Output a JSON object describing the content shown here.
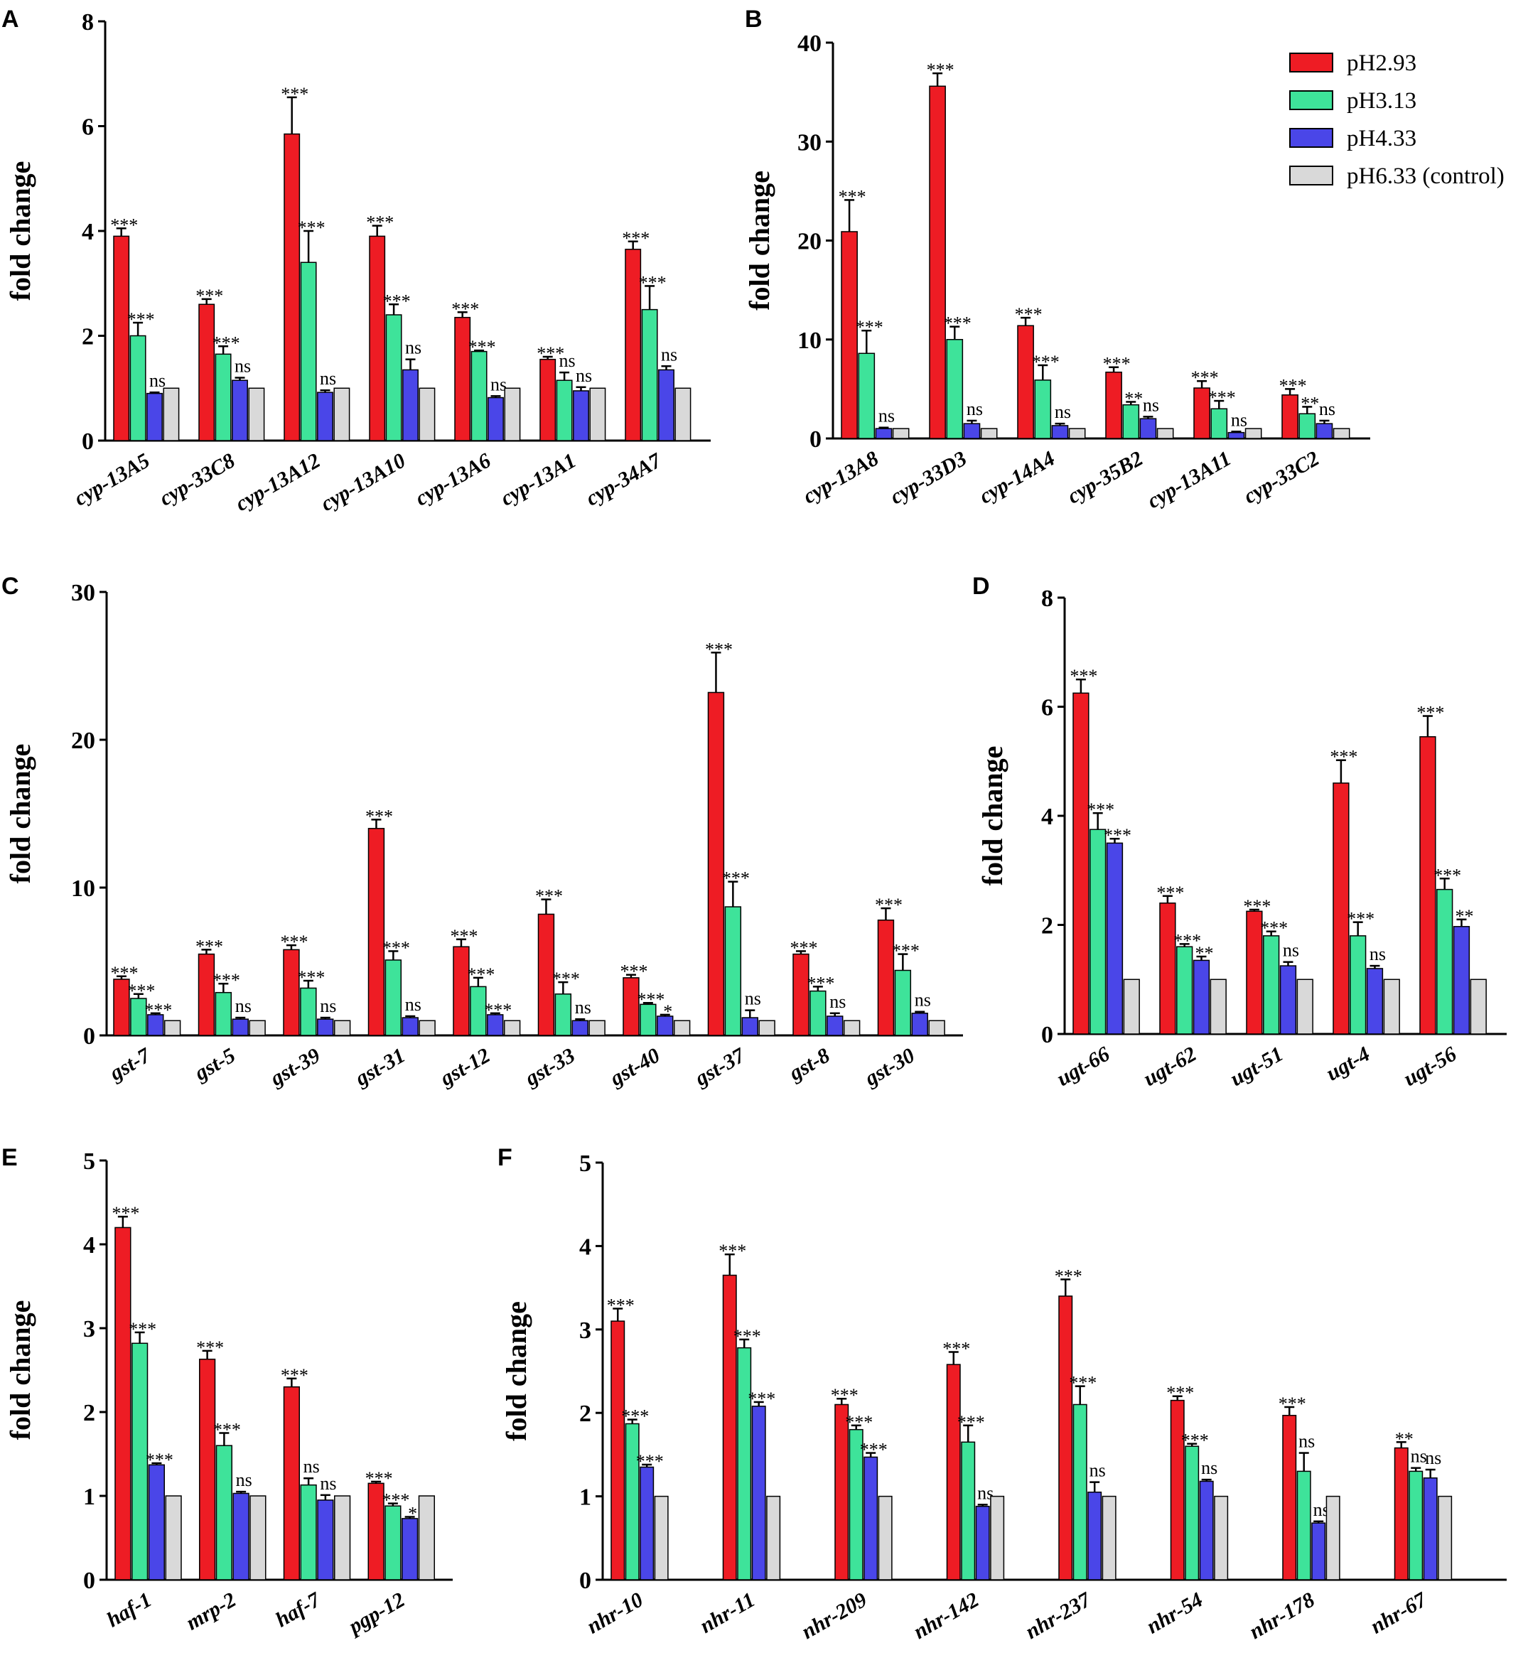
{
  "colors": {
    "pH2.93": "#ee1c24",
    "pH3.13": "#3ee39a",
    "pH4.33": "#4a46e8",
    "pH6.33 (control)": "#d9d9d9",
    "stroke": "#000000"
  },
  "legend": [
    "pH2.93",
    "pH3.13",
    "pH4.33",
    "pH6.33 (control)"
  ],
  "chart_data": [
    {
      "panel": "A",
      "type": "bar",
      "ylabel": "fold change",
      "ylim": [
        0,
        8
      ],
      "yticks": [
        0,
        2,
        4,
        6,
        8
      ],
      "categories": [
        "cyp-13A5",
        "cyp-33C8",
        "cyp-13A12",
        "cyp-13A10",
        "cyp-13A6",
        "cyp-13A1",
        "cyp-34A7"
      ],
      "series": [
        {
          "name": "pH2.93",
          "values": [
            3.9,
            2.6,
            5.85,
            3.9,
            2.35,
            1.55,
            3.65
          ],
          "errors": [
            0.15,
            0.1,
            0.7,
            0.2,
            0.1,
            0.05,
            0.15
          ],
          "sig": [
            "***",
            "***",
            "***",
            "***",
            "***",
            "***",
            "***"
          ]
        },
        {
          "name": "pH3.13",
          "values": [
            2.0,
            1.65,
            3.4,
            2.4,
            1.7,
            1.15,
            2.5
          ],
          "errors": [
            0.25,
            0.15,
            0.6,
            0.2,
            0.02,
            0.15,
            0.45
          ],
          "sig": [
            "***",
            "***",
            "***",
            "***",
            "***",
            "ns",
            "***"
          ]
        },
        {
          "name": "pH4.33",
          "values": [
            0.9,
            1.15,
            0.92,
            1.35,
            0.82,
            0.95,
            1.35
          ],
          "errors": [
            0.02,
            0.05,
            0.04,
            0.2,
            0.03,
            0.07,
            0.07
          ],
          "sig": [
            "ns",
            "ns",
            "ns",
            "ns",
            "ns",
            "ns",
            "ns"
          ]
        },
        {
          "name": "pH6.33 (control)",
          "values": [
            1,
            1,
            1,
            1,
            1,
            1,
            1
          ],
          "errors": [
            0,
            0,
            0,
            0,
            0,
            0,
            0
          ],
          "sig": [
            "",
            "",
            "",
            "",
            "",
            "",
            ""
          ]
        }
      ]
    },
    {
      "panel": "B",
      "type": "bar",
      "ylabel": "fold change",
      "ylim": [
        0,
        40
      ],
      "yticks": [
        0,
        10,
        20,
        30,
        40
      ],
      "categories": [
        "cyp-13A8",
        "cyp-33D3",
        "cyp-14A4",
        "cyp-35B2",
        "cyp-13A11",
        "cyp-33C2"
      ],
      "series": [
        {
          "name": "pH2.93",
          "values": [
            20.9,
            35.6,
            11.4,
            6.7,
            5.1,
            4.4
          ],
          "errors": [
            3.2,
            1.3,
            0.8,
            0.5,
            0.7,
            0.6
          ],
          "sig": [
            "***",
            "***",
            "***",
            "***",
            "***",
            "***"
          ]
        },
        {
          "name": "pH3.13",
          "values": [
            8.6,
            10.0,
            5.9,
            3.4,
            3.0,
            2.5
          ],
          "errors": [
            2.3,
            1.3,
            1.5,
            0.3,
            0.8,
            0.7
          ],
          "sig": [
            "***",
            "***",
            "***",
            "**",
            "***",
            "**"
          ]
        },
        {
          "name": "pH4.33",
          "values": [
            1.0,
            1.5,
            1.3,
            2.0,
            0.6,
            1.5
          ],
          "errors": [
            0.1,
            0.3,
            0.2,
            0.2,
            0.1,
            0.3
          ],
          "sig": [
            "ns",
            "ns",
            "ns",
            "ns",
            "ns",
            "ns"
          ]
        },
        {
          "name": "pH6.33 (control)",
          "values": [
            1,
            1,
            1,
            1,
            1,
            1
          ],
          "errors": [
            0,
            0,
            0,
            0,
            0,
            0
          ],
          "sig": [
            "",
            "",
            "",
            "",
            "",
            ""
          ]
        }
      ]
    },
    {
      "panel": "C",
      "type": "bar",
      "ylabel": "fold change",
      "ylim": [
        0,
        30
      ],
      "yticks": [
        0,
        10,
        20,
        30
      ],
      "categories": [
        "gst-7",
        "gst-5",
        "gst-39",
        "gst-31",
        "gst-12",
        "gst-33",
        "gst-40",
        "gst-37",
        "gst-8",
        "gst-30"
      ],
      "series": [
        {
          "name": "pH2.93",
          "values": [
            3.8,
            5.5,
            5.8,
            14.0,
            6.0,
            8.2,
            3.9,
            23.2,
            5.5,
            7.8
          ],
          "errors": [
            0.2,
            0.3,
            0.3,
            0.6,
            0.5,
            1.0,
            0.2,
            2.7,
            0.2,
            0.8
          ],
          "sig": [
            "***",
            "***",
            "***",
            "***",
            "***",
            "***",
            "***",
            "***",
            "***",
            "***"
          ]
        },
        {
          "name": "pH3.13",
          "values": [
            2.5,
            2.9,
            3.2,
            5.1,
            3.3,
            2.8,
            2.1,
            8.7,
            3.0,
            4.4
          ],
          "errors": [
            0.3,
            0.6,
            0.5,
            0.6,
            0.6,
            0.8,
            0.1,
            1.7,
            0.3,
            1.1
          ],
          "sig": [
            "***",
            "***",
            "***",
            "***",
            "***",
            "***",
            "***",
            "***",
            "***",
            "***"
          ]
        },
        {
          "name": "pH4.33",
          "values": [
            1.4,
            1.1,
            1.1,
            1.2,
            1.4,
            1.0,
            1.3,
            1.2,
            1.3,
            1.5
          ],
          "errors": [
            0.1,
            0.1,
            0.1,
            0.1,
            0.1,
            0.1,
            0.1,
            0.5,
            0.2,
            0.1
          ],
          "sig": [
            "***",
            "ns",
            "ns",
            "ns",
            "***",
            "ns",
            "*",
            "ns",
            "ns",
            "ns"
          ]
        },
        {
          "name": "pH6.33 (control)",
          "values": [
            1,
            1,
            1,
            1,
            1,
            1,
            1,
            1,
            1,
            1
          ],
          "errors": [
            0,
            0,
            0,
            0,
            0,
            0,
            0,
            0,
            0,
            0
          ],
          "sig": [
            "",
            "",
            "",
            "",
            "",
            "",
            "",
            "",
            "",
            ""
          ]
        }
      ]
    },
    {
      "panel": "D",
      "type": "bar",
      "ylabel": "fold change",
      "ylim": [
        0,
        8
      ],
      "yticks": [
        0,
        2,
        4,
        6,
        8
      ],
      "categories": [
        "ugt-66",
        "ugt-62",
        "ugt-51",
        "ugt-4",
        "ugt-56"
      ],
      "series": [
        {
          "name": "pH2.93",
          "values": [
            6.25,
            2.4,
            2.25,
            4.6,
            5.45
          ],
          "errors": [
            0.25,
            0.13,
            0.03,
            0.42,
            0.38
          ],
          "sig": [
            "***",
            "***",
            "***",
            "***",
            "***"
          ]
        },
        {
          "name": "pH3.13",
          "values": [
            3.75,
            1.6,
            1.8,
            1.8,
            2.65
          ],
          "errors": [
            0.3,
            0.05,
            0.08,
            0.25,
            0.2
          ],
          "sig": [
            "***",
            "***",
            "***",
            "***",
            "***"
          ]
        },
        {
          "name": "pH4.33",
          "values": [
            3.5,
            1.35,
            1.25,
            1.2,
            1.97
          ],
          "errors": [
            0.08,
            0.07,
            0.07,
            0.05,
            0.13
          ],
          "sig": [
            "***",
            "**",
            "ns",
            "ns",
            "**"
          ]
        },
        {
          "name": "pH6.33 (control)",
          "values": [
            1,
            1,
            1,
            1,
            1
          ],
          "errors": [
            0,
            0,
            0,
            0,
            0
          ],
          "sig": [
            "",
            "",
            "",
            "",
            ""
          ]
        }
      ]
    },
    {
      "panel": "E",
      "type": "bar",
      "ylabel": "fold change",
      "ylim": [
        0,
        5
      ],
      "yticks": [
        0,
        1,
        2,
        3,
        4,
        5
      ],
      "categories": [
        "haf-1",
        "mrp-2",
        "haf-7",
        "pgp-12"
      ],
      "series": [
        {
          "name": "pH2.93",
          "values": [
            4.2,
            2.63,
            2.3,
            1.15
          ],
          "errors": [
            0.13,
            0.1,
            0.1,
            0.02
          ],
          "sig": [
            "***",
            "***",
            "***",
            "***"
          ]
        },
        {
          "name": "pH3.13",
          "values": [
            2.82,
            1.6,
            1.13,
            0.88
          ],
          "errors": [
            0.13,
            0.15,
            0.08,
            0.03
          ],
          "sig": [
            "***",
            "***",
            "ns",
            "***"
          ]
        },
        {
          "name": "pH4.33",
          "values": [
            1.37,
            1.03,
            0.95,
            0.73
          ],
          "errors": [
            0.02,
            0.02,
            0.06,
            0.02
          ],
          "sig": [
            "***",
            "ns",
            "ns",
            "*"
          ]
        },
        {
          "name": "pH6.33 (control)",
          "values": [
            1,
            1,
            1,
            1
          ],
          "errors": [
            0,
            0,
            0,
            0
          ],
          "sig": [
            "",
            "",
            "",
            ""
          ]
        }
      ]
    },
    {
      "panel": "F",
      "type": "bar",
      "ylabel": "fold change",
      "ylim": [
        0,
        5
      ],
      "yticks": [
        0,
        1,
        2,
        3,
        4,
        5
      ],
      "categories": [
        "nhr-10",
        "nhr-11",
        "nhr-209",
        "nhr-142",
        "nhr-237",
        "nhr-54",
        "nhr-178",
        "nhr-67"
      ],
      "series": [
        {
          "name": "pH2.93",
          "values": [
            3.1,
            3.65,
            2.1,
            2.58,
            3.4,
            2.15,
            1.97,
            1.58
          ],
          "errors": [
            0.15,
            0.25,
            0.07,
            0.15,
            0.2,
            0.05,
            0.1,
            0.07
          ],
          "sig": [
            "***",
            "***",
            "***",
            "***",
            "***",
            "***",
            "***",
            "**"
          ]
        },
        {
          "name": "pH3.13",
          "values": [
            1.87,
            2.78,
            1.8,
            1.65,
            2.1,
            1.6,
            1.3,
            1.3
          ],
          "errors": [
            0.05,
            0.1,
            0.05,
            0.2,
            0.22,
            0.03,
            0.22,
            0.04
          ],
          "sig": [
            "***",
            "***",
            "***",
            "***",
            "***",
            "***",
            "ns",
            "ns"
          ]
        },
        {
          "name": "pH4.33",
          "values": [
            1.35,
            2.08,
            1.47,
            0.88,
            1.05,
            1.18,
            0.68,
            1.22
          ],
          "errors": [
            0.03,
            0.05,
            0.05,
            0.02,
            0.12,
            0.02,
            0.02,
            0.1
          ],
          "sig": [
            "***",
            "***",
            "***",
            "ns",
            "ns",
            "ns",
            "ns",
            "ns"
          ]
        },
        {
          "name": "pH6.33 (control)",
          "values": [
            1,
            1,
            1,
            1,
            1,
            1,
            1,
            1
          ],
          "errors": [
            0,
            0,
            0,
            0,
            0,
            0,
            0,
            0
          ],
          "sig": [
            "",
            "",
            "",
            "",
            "",
            "",
            "",
            ""
          ]
        }
      ]
    }
  ]
}
